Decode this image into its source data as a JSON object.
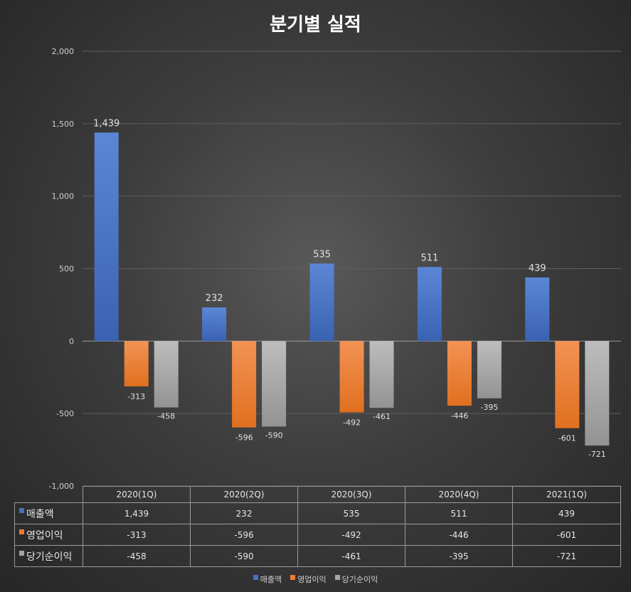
{
  "chart_data": {
    "type": "bar",
    "title": "분기별 실적",
    "categories": [
      "2020(1Q)",
      "2020(2Q)",
      "2020(3Q)",
      "2020(4Q)",
      "2021(1Q)"
    ],
    "series": [
      {
        "name": "매출액",
        "color": "#4472c4",
        "values": [
          1439,
          232,
          535,
          511,
          439
        ],
        "labels": [
          "1,439",
          "232",
          "535",
          "511",
          "439"
        ]
      },
      {
        "name": "영업이익",
        "color": "#ed7d31",
        "values": [
          -313,
          -596,
          -492,
          -446,
          -601
        ],
        "labels": [
          "-313",
          "-596",
          "-492",
          "-446",
          "-601"
        ]
      },
      {
        "name": "당기순이익",
        "color": "#a5a5a5",
        "values": [
          -458,
          -590,
          -461,
          -395,
          -721
        ],
        "labels": [
          "-458",
          "-590",
          "-461",
          "-395",
          "-721"
        ]
      }
    ],
    "ylim": [
      -1000,
      2000
    ],
    "yticks": [
      2000,
      1500,
      1000,
      500,
      0,
      -500,
      -1000
    ],
    "ytick_labels": [
      "2,000",
      "1,500",
      "1,000",
      "500",
      "0",
      "-500",
      "-1,000"
    ],
    "grid": true,
    "legend_position": "bottom",
    "data_table": true
  }
}
